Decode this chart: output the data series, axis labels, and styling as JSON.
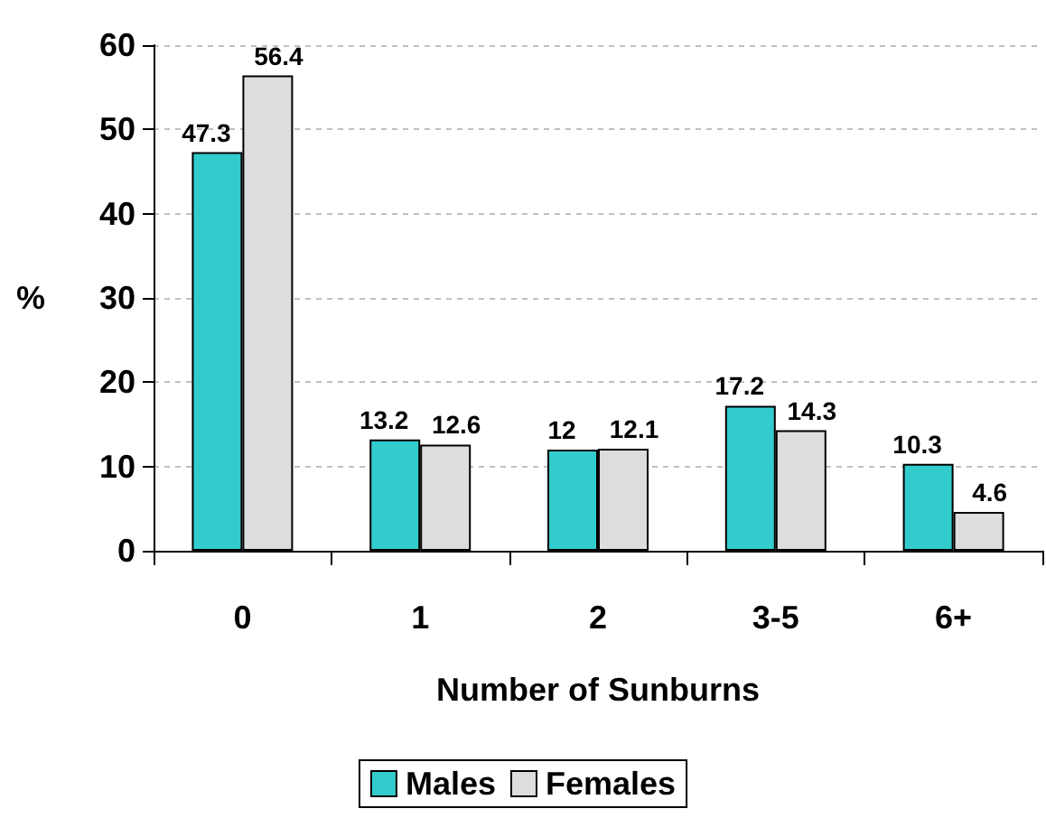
{
  "chart_data": {
    "type": "bar",
    "xlabel": "Number of Sunburns",
    "ylabel": "%",
    "categories": [
      "0",
      "1",
      "2",
      "3-5",
      "6+"
    ],
    "series": [
      {
        "name": "Males",
        "color": "#33cccc",
        "values": [
          47.3,
          13.2,
          12,
          17.2,
          10.3
        ]
      },
      {
        "name": "Females",
        "color": "#dddddd",
        "values": [
          56.4,
          12.6,
          12.1,
          14.3,
          4.6
        ]
      }
    ],
    "ylim": [
      0,
      60
    ],
    "yticks": [
      0,
      10,
      20,
      30,
      40,
      50,
      60
    ],
    "grid": "y",
    "legend": "bottom",
    "data_labels": true
  }
}
